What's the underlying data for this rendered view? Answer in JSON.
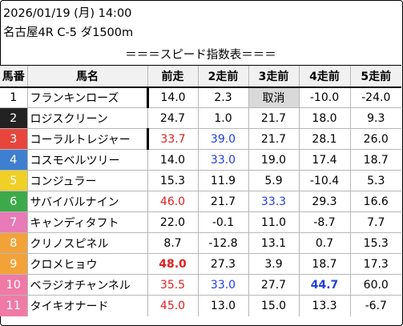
{
  "header": {
    "datetime": "2026/01/19 (月) 14:00",
    "race": "名古屋4R C-5 ダ1500m"
  },
  "title": "＝＝＝スピード指数表＝＝＝",
  "columns": [
    "馬番",
    "馬名",
    "前走",
    "2走前",
    "3走前",
    "4走前",
    "5走前"
  ],
  "colors": {
    "gate": [
      "#ffffff",
      "#222222",
      "#e8453c",
      "#3f7fcf",
      "#f0cf27",
      "#3caa4a",
      "#e87ab8",
      "#f3a23a",
      "#f3a23a",
      "#f07aa6",
      "#f07aa6"
    ],
    "gate_text": [
      "#000000",
      "#ffffff",
      "#ffffff",
      "#ffffff",
      "#ffffff",
      "#ffffff",
      "#ffffff",
      "#ffffff",
      "#ffffff",
      "#ffffff",
      "#ffffff"
    ],
    "highlight_red": "#e02020",
    "highlight_blue": "#1f3fe0",
    "cancel_bg": "#d9d9d9"
  },
  "rows": [
    {
      "num": "1",
      "name": "フランキンローズ",
      "v": [
        "14.0",
        "2.3",
        "取消",
        "-10.0",
        "-24.0"
      ]
    },
    {
      "num": "2",
      "name": "ロジスクリーン",
      "v": [
        "24.7",
        "1.0",
        "21.7",
        "18.0",
        "9.3"
      ]
    },
    {
      "num": "3",
      "name": "コーラルトレジャー",
      "v": [
        "33.7",
        "39.0",
        "21.7",
        "28.1",
        "26.0"
      ]
    },
    {
      "num": "4",
      "name": "コスモベルツリー",
      "v": [
        "14.0",
        "33.0",
        "19.0",
        "17.4",
        "18.7"
      ]
    },
    {
      "num": "5",
      "name": "コンジュラー",
      "v": [
        "15.3",
        "11.9",
        "5.9",
        "-10.4",
        "5.3"
      ]
    },
    {
      "num": "6",
      "name": "サバイバルナイン",
      "v": [
        "46.0",
        "21.7",
        "33.3",
        "29.3",
        "16.6"
      ]
    },
    {
      "num": "7",
      "name": "キャンディタフト",
      "v": [
        "22.0",
        "-0.1",
        "11.0",
        "-8.7",
        "7.7"
      ]
    },
    {
      "num": "8",
      "name": "クリノスピネル",
      "v": [
        "8.7",
        "-12.8",
        "13.1",
        "0.7",
        "15.3"
      ]
    },
    {
      "num": "9",
      "name": "クロメヒョウ",
      "v": [
        "48.0",
        "27.3",
        "3.9",
        "18.7",
        "17.3"
      ]
    },
    {
      "num": "10",
      "name": "ベラジオチャンネル",
      "v": [
        "35.5",
        "33.0",
        "27.7",
        "44.7",
        "60.0"
      ]
    },
    {
      "num": "11",
      "name": "タイキオナード",
      "v": [
        "45.0",
        "13.0",
        "15.0",
        "13.3",
        "-6.7"
      ]
    }
  ]
}
